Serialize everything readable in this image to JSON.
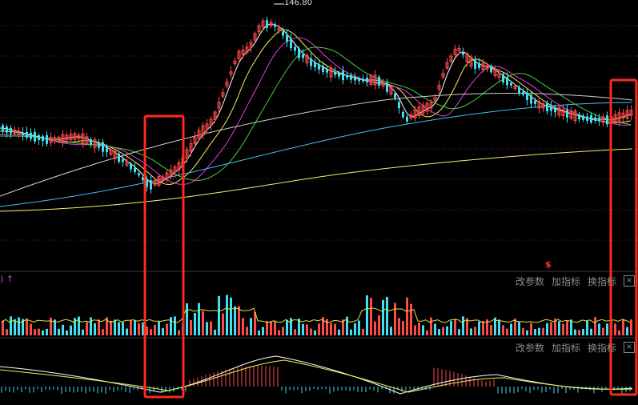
{
  "price_panel": {
    "high_label": "146.80",
    "marker_label": "$",
    "highlight_color": "#ff2a1a"
  },
  "volume_panel": {
    "label": ") ↑",
    "toolbar": {
      "modify_params": "改参数",
      "add_indicator": "加指标",
      "switch_indicator": "换指标",
      "close": "×"
    }
  },
  "macd_panel": {
    "toolbar": {
      "modify_params": "改参数",
      "add_indicator": "加指标",
      "switch_indicator": "换指标",
      "close": "×"
    }
  },
  "colors": {
    "up": "#ff4a4a",
    "down": "#40e0f0",
    "ma5": "#ffffff",
    "ma10": "#f0f060",
    "ma20": "#e040e0",
    "ma30": "#40d040",
    "ma60": "#d0d0d0",
    "ma120": "#40c0f0",
    "ma250": "#f0f070",
    "grid": "#8b1c1c"
  },
  "chart_data": {
    "type": "candlestick",
    "high_marker": 146.8,
    "indicators": [
      "MA",
      "VOL",
      "MACD"
    ],
    "grid": true
  }
}
